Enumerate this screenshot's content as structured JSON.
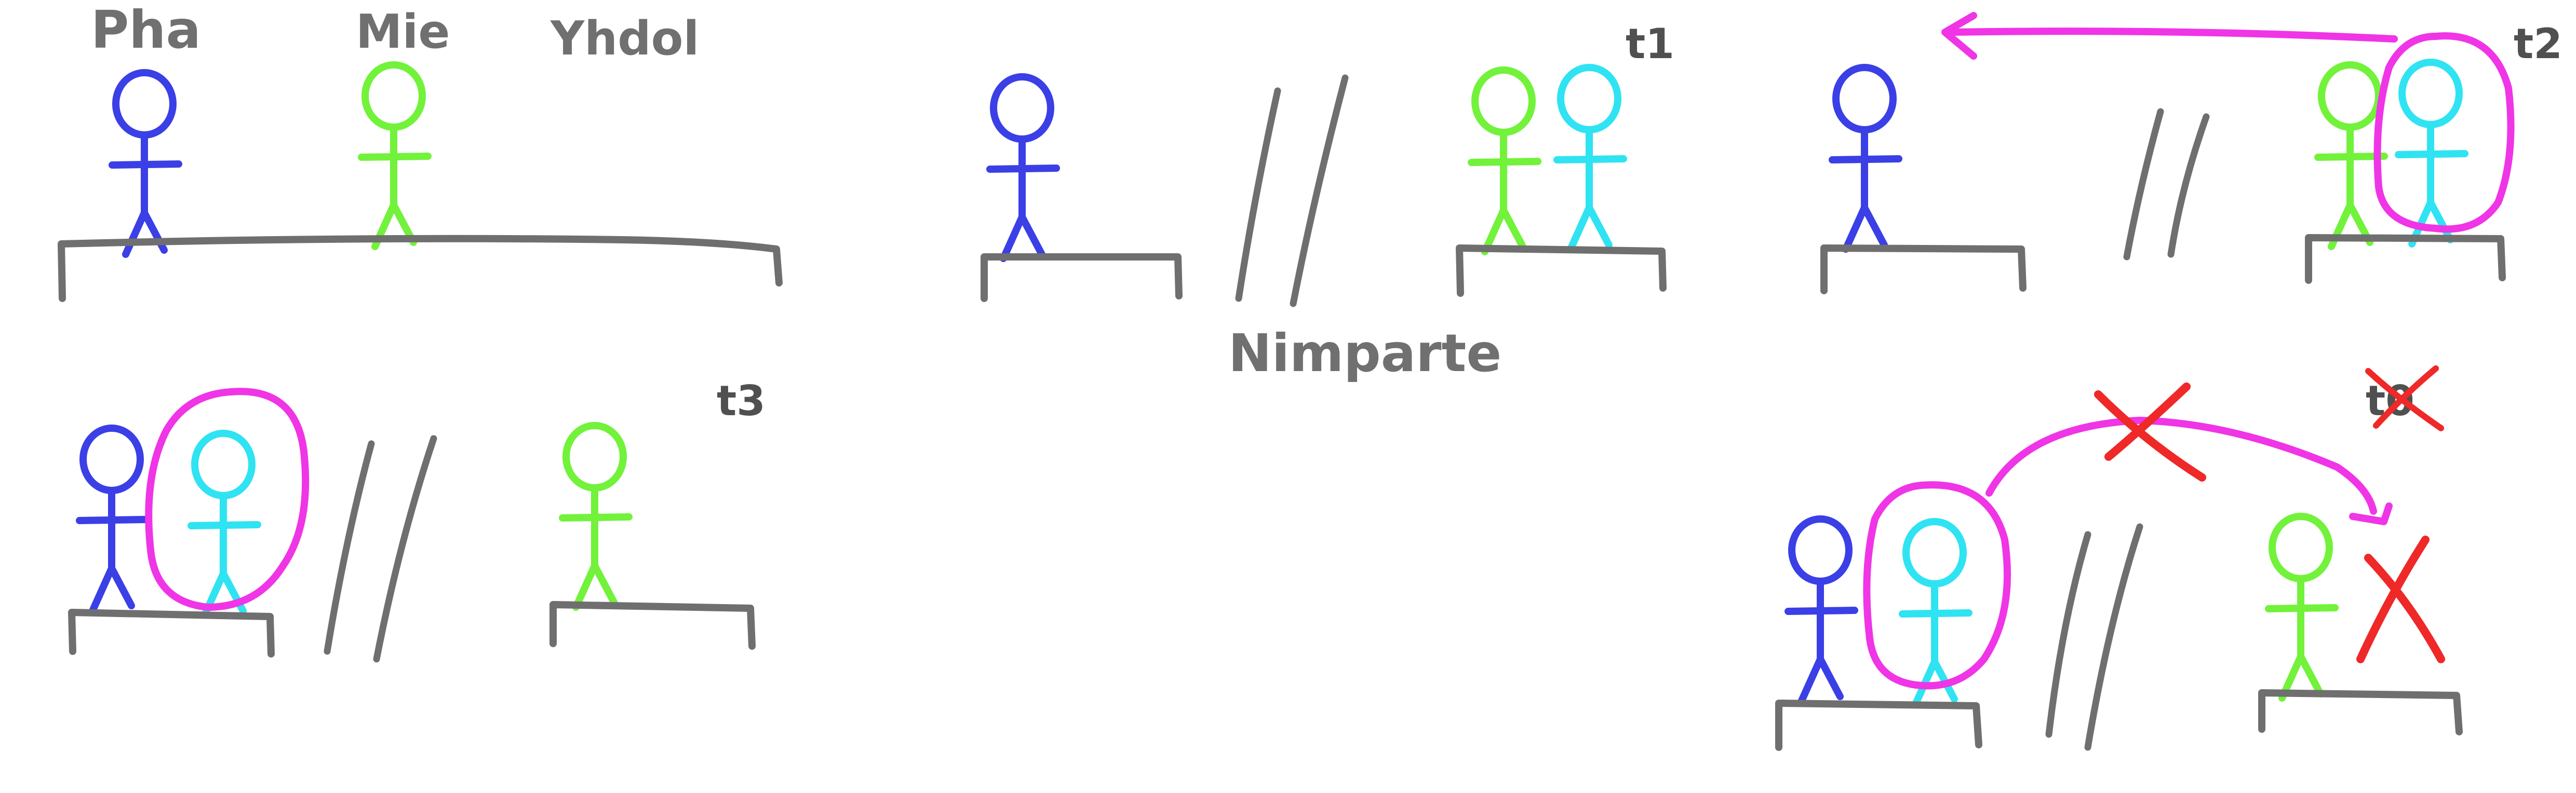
{
  "labels": {
    "pha": "Pha",
    "mie": "Mie",
    "yhdol": "Yhdol",
    "nimparte": "Nimparte",
    "t1": "t1",
    "t2": "t2",
    "t3": "t3",
    "t0": "t0"
  },
  "colors": {
    "blue": "#3b3fe6",
    "green": "#72f23a",
    "cyan": "#2fe3f2",
    "magenta": "#ef35e6",
    "red": "#ef2828",
    "gray": "#6f6f6f",
    "text": "#707070"
  },
  "icons": [
    "stick-figure",
    "ground-platform",
    "double-line-divider",
    "arrow",
    "cross-mark"
  ]
}
